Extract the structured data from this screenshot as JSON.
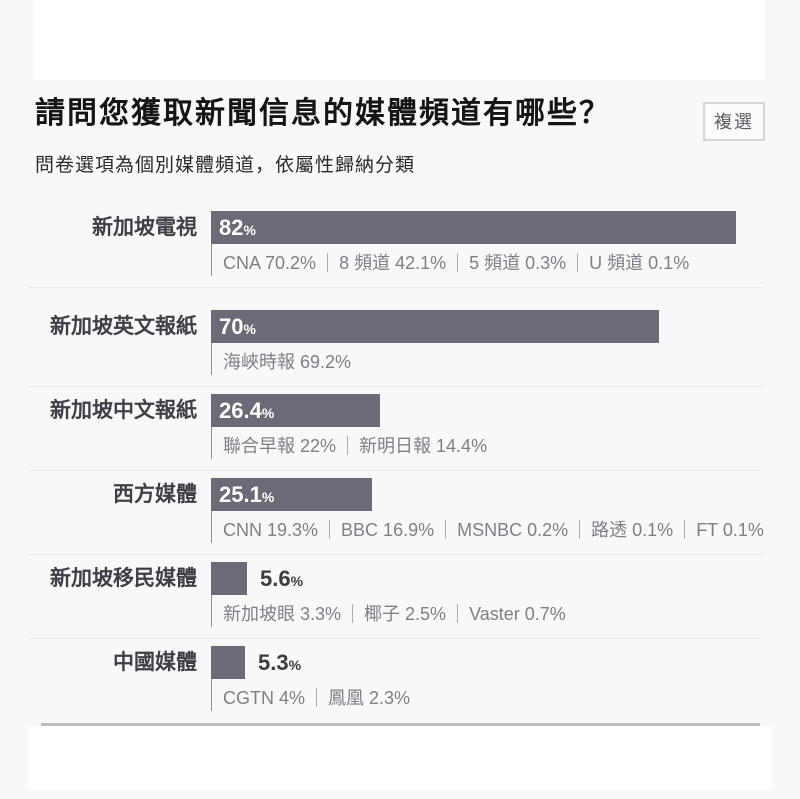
{
  "page": {
    "background_color": "#f8f8f8",
    "card_color": "#ffffff"
  },
  "header": {
    "title": "請問您獲取新聞信息的媒體頻道有哪些？",
    "badge": "複選",
    "subtitle": "問卷選項為個別媒體頻道，依屬性歸納分類"
  },
  "chart_data": {
    "type": "bar",
    "orientation": "horizontal",
    "unit": "%",
    "bar_color": "#6b6a76",
    "value_label_inside_color": "#ffffff",
    "value_label_outside_color": "#3b3b42",
    "xlim": [
      0,
      86
    ],
    "grid": false,
    "legend": false,
    "categories": [
      "新加坡電視",
      "新加坡英文報紙",
      "新加坡中文報紙",
      "西方媒體",
      "新加坡移民媒體",
      "中國媒體"
    ],
    "values": [
      82,
      70,
      26.4,
      25.1,
      5.6,
      5.3
    ],
    "rows": [
      {
        "label": "新加坡電視",
        "value": 82,
        "value_display": "82",
        "sub_channels": [
          {
            "name": "CNA",
            "value": "70.2%"
          },
          {
            "name": "8 頻道",
            "value": "42.1%"
          },
          {
            "name": "5 頻道",
            "value": "0.3%"
          },
          {
            "name": "U 頻道",
            "value": "0.1%"
          }
        ]
      },
      {
        "label": "新加坡英文報紙",
        "value": 70,
        "value_display": "70",
        "sub_channels": [
          {
            "name": "海峽時報",
            "value": "69.2%"
          }
        ]
      },
      {
        "label": "新加坡中文報紙",
        "value": 26.4,
        "value_display": "26.4",
        "sub_channels": [
          {
            "name": "聯合早報",
            "value": "22%"
          },
          {
            "name": "新明日報",
            "value": "14.4%"
          }
        ]
      },
      {
        "label": "西方媒體",
        "value": 25.1,
        "value_display": "25.1",
        "sub_channels": [
          {
            "name": "CNN",
            "value": "19.3%"
          },
          {
            "name": "BBC",
            "value": "16.9%"
          },
          {
            "name": "MSNBC",
            "value": "0.2%"
          },
          {
            "name": "路透",
            "value": "0.1%"
          },
          {
            "name": "FT",
            "value": "0.1%"
          }
        ]
      },
      {
        "label": "新加坡移民媒體",
        "value": 5.6,
        "value_display": "5.6",
        "sub_channels": [
          {
            "name": "新加坡眼",
            "value": "3.3%"
          },
          {
            "name": "椰子",
            "value": "2.5%"
          },
          {
            "name": "Vaster",
            "value": "0.7%"
          }
        ]
      },
      {
        "label": "中國媒體",
        "value": 5.3,
        "value_display": "5.3",
        "sub_channels": [
          {
            "name": "CGTN",
            "value": "4%"
          },
          {
            "name": "鳳凰",
            "value": "2.3%"
          }
        ]
      }
    ]
  }
}
